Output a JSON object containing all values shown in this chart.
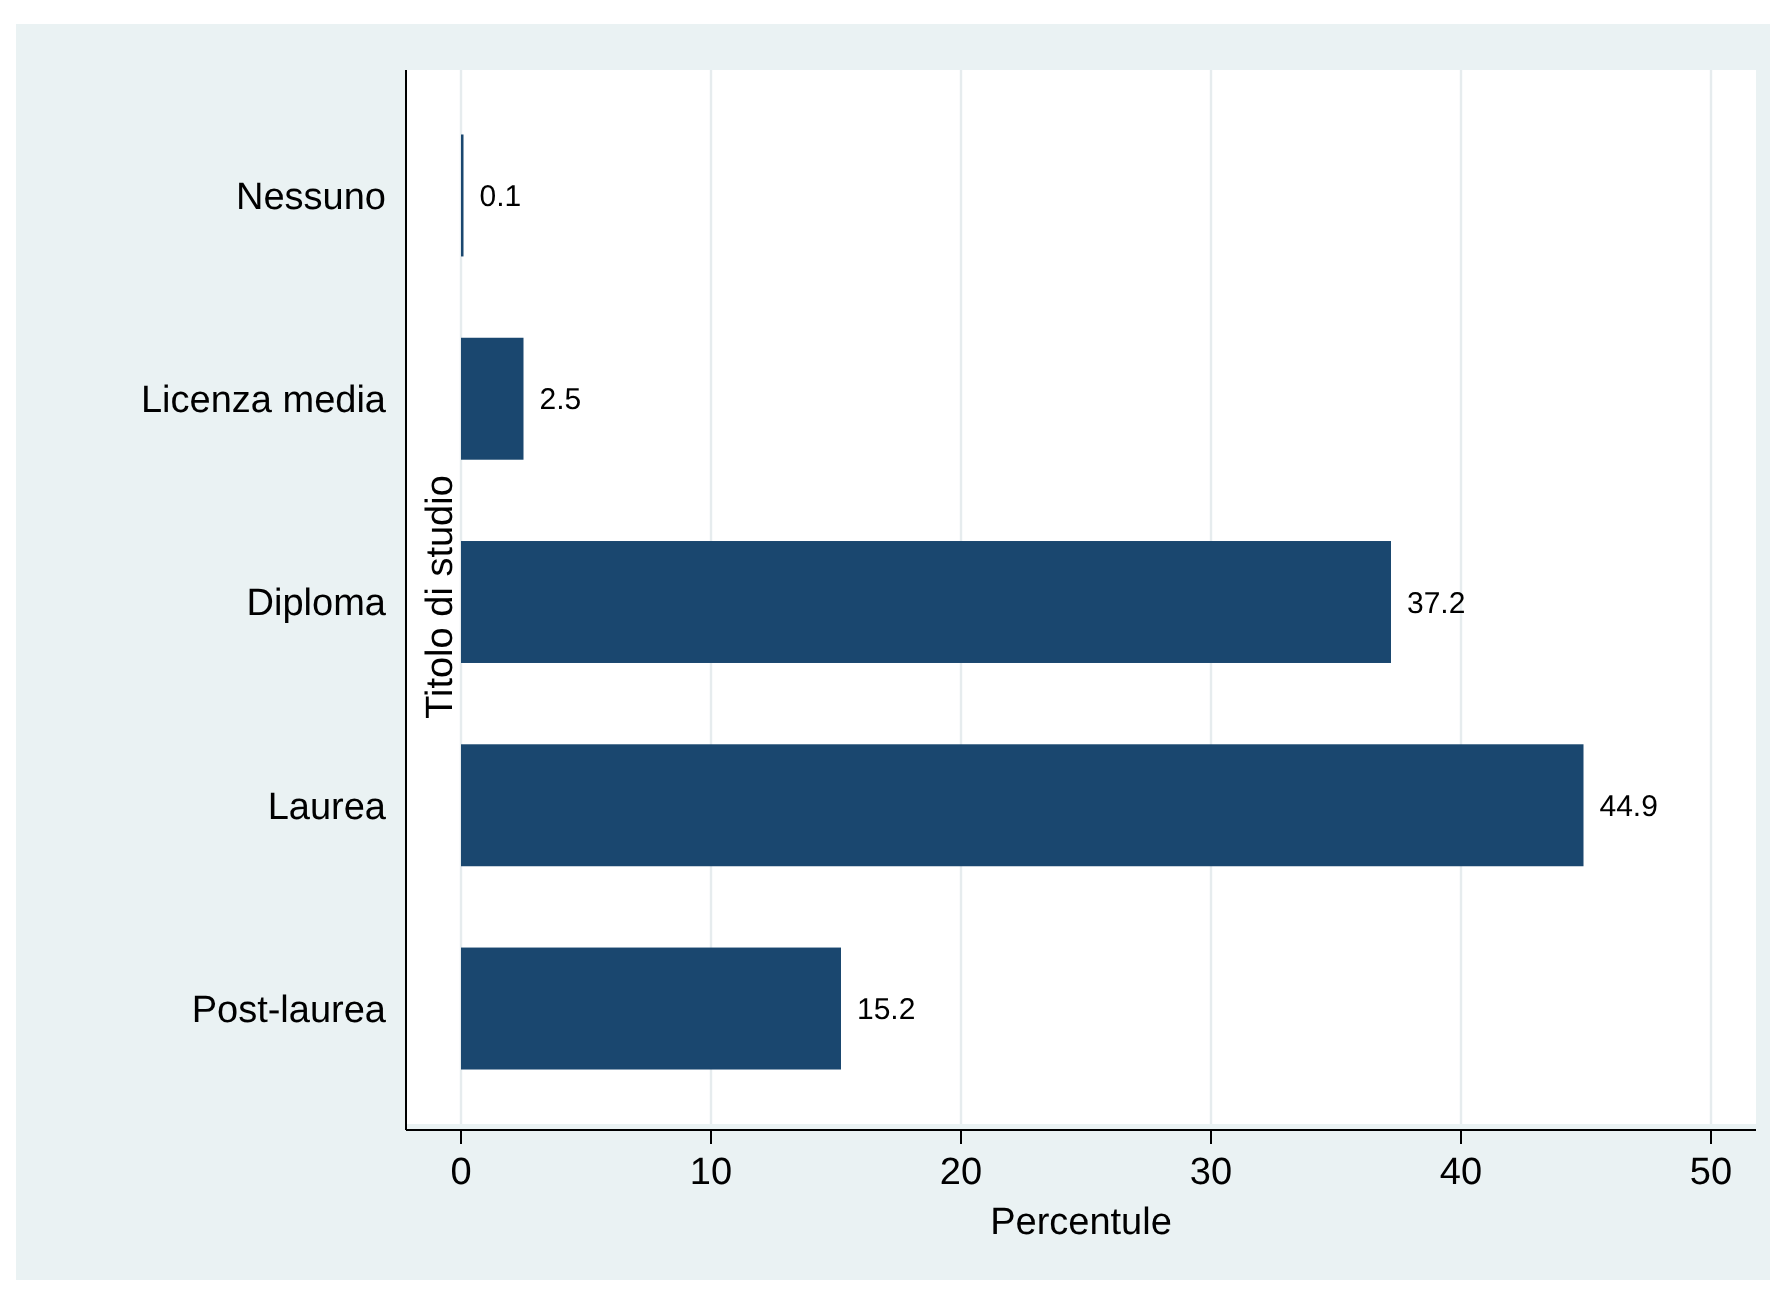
{
  "chart_data": {
    "type": "bar",
    "orientation": "horizontal",
    "xlabel": "Percentule",
    "ylabel": "Titolo di studio",
    "categories": [
      "Nessuno",
      "Licenza media",
      "Diploma",
      "Laurea",
      "Post-laurea"
    ],
    "values": [
      0.1,
      2.5,
      37.2,
      44.9,
      15.2
    ],
    "color": "#1a476f",
    "xlim": [
      -2.2,
      51.8
    ],
    "xticks": [
      0,
      10,
      20,
      30,
      40,
      50
    ],
    "grid": "x",
    "data_labels": true
  }
}
